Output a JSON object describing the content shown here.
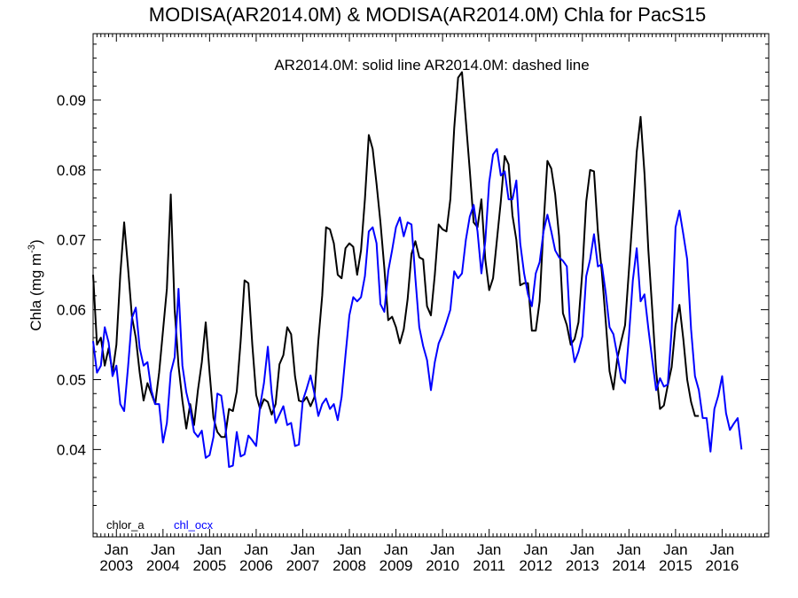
{
  "chart_data": {
    "type": "line",
    "title": "MODISA(AR2014.0M) & MODISA(AR2014.0M)  Chla for PacS15",
    "subtitle": "AR2014.0M: solid line   AR2014.0M: dashed line",
    "ylabel": "Chla (mg m",
    "ylabel_sup": "-3",
    "ylabel_end": ")",
    "xlabel": "",
    "xlim": [
      "2002-07-01",
      "2017-01-01"
    ],
    "ylim": [
      0.0275,
      0.0995
    ],
    "yticks": [
      0.04,
      0.05,
      0.06,
      0.07,
      0.08,
      0.09
    ],
    "ytick_labels": [
      "0.04",
      "0.05",
      "0.06",
      "0.07",
      "0.08",
      "0.09"
    ],
    "xtick_month_label": "Jan",
    "xtick_years": [
      "2003",
      "2004",
      "2005",
      "2006",
      "2007",
      "2008",
      "2009",
      "2010",
      "2011",
      "2012",
      "2013",
      "2014",
      "2015",
      "2016"
    ],
    "legend": [
      {
        "label": "chlor_a",
        "color": "#000000"
      },
      {
        "label": "chl_ocx",
        "color": "#0000ff"
      }
    ],
    "x_start": "2002-07",
    "series": [
      {
        "name": "chlor_a",
        "color": "#000000",
        "values": [
          0.065,
          0.055,
          0.056,
          0.052,
          0.0545,
          0.051,
          0.055,
          0.065,
          0.0725,
          0.066,
          0.059,
          0.056,
          0.051,
          0.047,
          0.0495,
          0.048,
          0.0465,
          0.051,
          0.057,
          0.063,
          0.0765,
          0.06,
          0.052,
          0.047,
          0.043,
          0.0465,
          0.0435,
          0.0485,
          0.0525,
          0.0582,
          0.051,
          0.0445,
          0.0425,
          0.0418,
          0.0418,
          0.0458,
          0.0455,
          0.0483,
          0.0555,
          0.0642,
          0.0638,
          0.055,
          0.0478,
          0.0458,
          0.0472,
          0.0468,
          0.045,
          0.0465,
          0.0522,
          0.0535,
          0.0575,
          0.0565,
          0.0505,
          0.047,
          0.0468,
          0.0475,
          0.0462,
          0.0475,
          0.0555,
          0.062,
          0.0718,
          0.0715,
          0.0695,
          0.065,
          0.0645,
          0.0688,
          0.0695,
          0.069,
          0.065,
          0.0685,
          0.0758,
          0.085,
          0.083,
          0.078,
          0.0725,
          0.066,
          0.0585,
          0.059,
          0.0575,
          0.0552,
          0.0572,
          0.0615,
          0.068,
          0.0698,
          0.0675,
          0.0672,
          0.0605,
          0.0592,
          0.065,
          0.0722,
          0.0715,
          0.0712,
          0.0758,
          0.086,
          0.0932,
          0.094,
          0.087,
          0.08,
          0.0725,
          0.0718,
          0.0758,
          0.0672,
          0.0628,
          0.0645,
          0.07,
          0.0755,
          0.082,
          0.0808,
          0.0735,
          0.07,
          0.0635,
          0.0638,
          0.0638,
          0.057,
          0.057,
          0.0612,
          0.072,
          0.0813,
          0.0802,
          0.0765,
          0.0705,
          0.0595,
          0.0578,
          0.055,
          0.0558,
          0.0582,
          0.0655,
          0.0755,
          0.08,
          0.0798,
          0.0712,
          0.0655,
          0.0585,
          0.0512,
          0.0486,
          0.053,
          0.0555,
          0.0578,
          0.0657,
          0.0738,
          0.0826,
          0.0876,
          0.0795,
          0.0685,
          0.06,
          0.0512,
          0.0458,
          0.0463,
          0.0492,
          0.0518,
          0.0578,
          0.0607,
          0.0558,
          0.05,
          0.0468,
          0.0448,
          0.0448
        ]
      },
      {
        "name": "chl_ocx",
        "color": "#0000ff",
        "values": [
          0.0555,
          0.051,
          0.052,
          0.0575,
          0.0553,
          0.0505,
          0.052,
          0.0465,
          0.0455,
          0.0518,
          0.0588,
          0.0603,
          0.0545,
          0.052,
          0.0525,
          0.0485,
          0.0465,
          0.0465,
          0.041,
          0.0438,
          0.051,
          0.0532,
          0.063,
          0.052,
          0.0482,
          0.0458,
          0.0425,
          0.0418,
          0.0427,
          0.0388,
          0.0392,
          0.0418,
          0.048,
          0.0477,
          0.0438,
          0.0375,
          0.0377,
          0.0425,
          0.039,
          0.0393,
          0.042,
          0.0413,
          0.0405,
          0.0462,
          0.0495,
          0.0547,
          0.048,
          0.0438,
          0.045,
          0.0462,
          0.0435,
          0.0438,
          0.0405,
          0.0407,
          0.047,
          0.0487,
          0.0506,
          0.048,
          0.0448,
          0.0465,
          0.0473,
          0.0458,
          0.0465,
          0.0442,
          0.0475,
          0.0535,
          0.0592,
          0.0618,
          0.0612,
          0.0618,
          0.0648,
          0.0712,
          0.0718,
          0.0695,
          0.0608,
          0.0597,
          0.0655,
          0.0685,
          0.0718,
          0.0732,
          0.0705,
          0.0725,
          0.0722,
          0.0645,
          0.0575,
          0.0548,
          0.0528,
          0.0485,
          0.0525,
          0.0552,
          0.0565,
          0.0582,
          0.06,
          0.0655,
          0.0645,
          0.0652,
          0.07,
          0.0733,
          0.075,
          0.0712,
          0.0652,
          0.0698,
          0.0782,
          0.0822,
          0.083,
          0.0792,
          0.0798,
          0.0758,
          0.0758,
          0.0785,
          0.0695,
          0.0652,
          0.0622,
          0.0605,
          0.0652,
          0.0668,
          0.0712,
          0.0736,
          0.0712,
          0.0685,
          0.0675,
          0.067,
          0.0662,
          0.0562,
          0.0525,
          0.054,
          0.0562,
          0.0648,
          0.0672,
          0.0708,
          0.0662,
          0.0665,
          0.0625,
          0.0575,
          0.0565,
          0.0535,
          0.0502,
          0.0495,
          0.0562,
          0.0642,
          0.0688,
          0.0612,
          0.0622,
          0.0573,
          0.0528,
          0.0485,
          0.0502,
          0.049,
          0.0493,
          0.0572,
          0.0718,
          0.0742,
          0.0708,
          0.0672,
          0.0572,
          0.0505,
          0.0485,
          0.0445,
          0.0445,
          0.0397,
          0.0458,
          0.0477,
          0.0505,
          0.0452,
          0.0428,
          0.0437,
          0.0445,
          0.04
        ]
      }
    ]
  }
}
